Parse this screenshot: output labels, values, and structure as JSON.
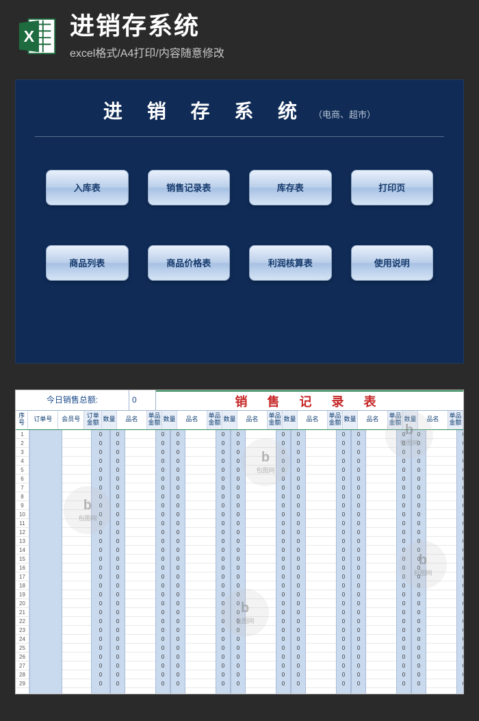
{
  "header": {
    "title": "进销存系统",
    "subtitle": "excel格式/A4打印/内容随意修改",
    "icon_color": "#1e6b3f"
  },
  "dashboard": {
    "title": "进 销 存 系 统",
    "subtitle": "（电商、超市）",
    "bg_color": "#0f2b56",
    "buttons": [
      {
        "label": "入库表"
      },
      {
        "label": "销售记录表"
      },
      {
        "label": "库存表"
      },
      {
        "label": "打印页"
      },
      {
        "label": "商品列表"
      },
      {
        "label": "商品价格表"
      },
      {
        "label": "利润核算表"
      },
      {
        "label": "使用说明"
      }
    ]
  },
  "sheet": {
    "sum_label": "今日销售总额:",
    "sum_value": "0",
    "title": "销 售 记 录 表",
    "title_color": "#c62626",
    "headers": {
      "idx": "序号",
      "order": "订单号",
      "member": "会员号",
      "amount": "订单金额",
      "qty": "数量",
      "goods": "品名",
      "price": "单品金额"
    },
    "row_count": 29,
    "group_count": 6,
    "stripe_color": "#c9d9ee",
    "grid_color": "#e8e8e8"
  },
  "watermark": {
    "brand": "包图网"
  }
}
